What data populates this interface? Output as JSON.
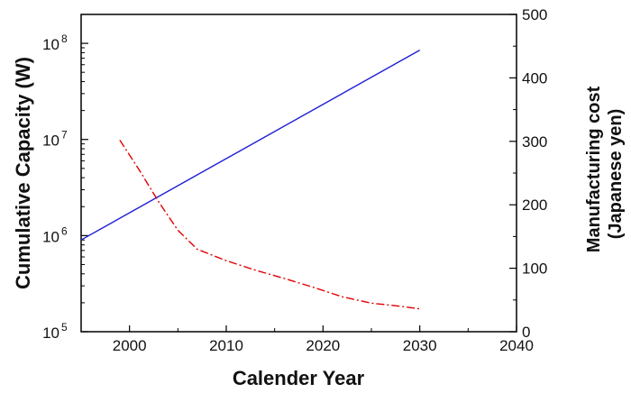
{
  "chart_data": {
    "type": "line",
    "xlabel": "Calender Year",
    "ylabel_left": "Cumulative Capacity (W)",
    "ylabel_right_line1": "Manufacturing cost",
    "ylabel_right_line2": "(Japanese yen)",
    "x_range": [
      1995,
      2040
    ],
    "x_ticks": [
      "2000",
      "2010",
      "2020",
      "2030",
      "2040"
    ],
    "y_left_scale": "log",
    "y_left_range": [
      100000,
      200000000
    ],
    "y_left_ticks": [
      {
        "base": "10",
        "exp": "5",
        "value": 100000
      },
      {
        "base": "10",
        "exp": "6",
        "value": 1000000
      },
      {
        "base": "10",
        "exp": "7",
        "value": 10000000
      },
      {
        "base": "10",
        "exp": "8",
        "value": 100000000
      }
    ],
    "y_right_range": [
      0,
      500
    ],
    "y_right_ticks": [
      "0",
      "100",
      "200",
      "300",
      "400",
      "500"
    ],
    "grid": false,
    "series": [
      {
        "axis": "left",
        "color": "#1f1fd6",
        "style": "solid",
        "x": [
          1995,
          2030
        ],
        "y": [
          900000,
          85000000
        ]
      },
      {
        "axis": "right",
        "color": "#e00000",
        "style": "dash-dot",
        "x": [
          1999,
          2001,
          2003,
          2005,
          2007,
          2010,
          2013,
          2016,
          2019,
          2022,
          2025,
          2028,
          2030
        ],
        "y": [
          302,
          255,
          205,
          160,
          130,
          112,
          97,
          84,
          70,
          55,
          45,
          40,
          36
        ]
      }
    ]
  }
}
